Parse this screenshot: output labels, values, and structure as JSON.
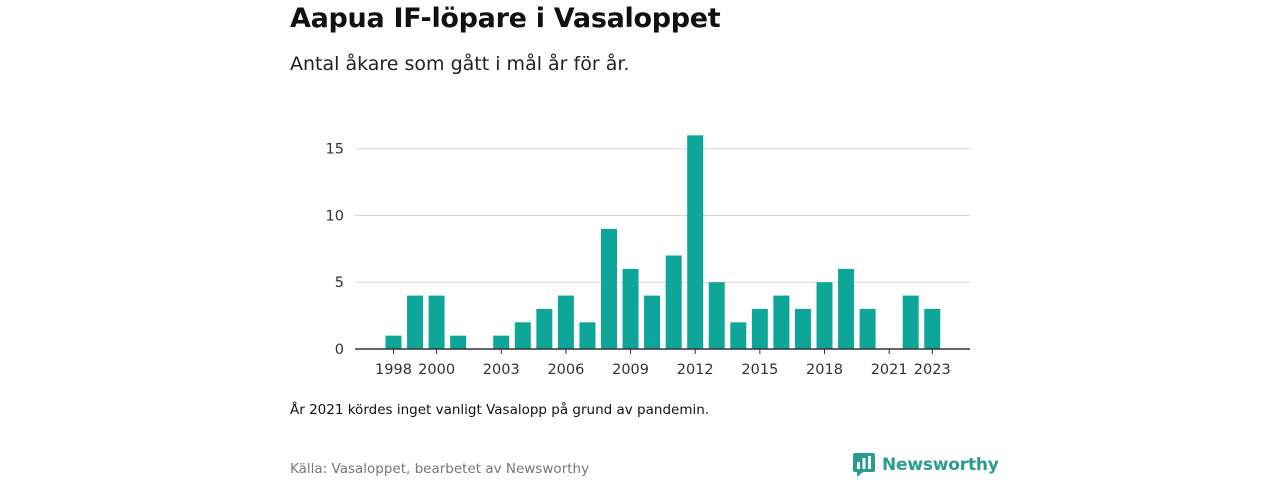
{
  "header": {
    "title": "Aapua IF-löpare i Vasaloppet",
    "subtitle": "Antal åkare som gått i mål år för år."
  },
  "footer": {
    "note": "År 2021 kördes inget vanligt Vasalopp på grund av pandemin.",
    "source": "Källa: Vasaloppet, bearbetet av Newsworthy",
    "brand": "Newsworthy",
    "brand_icon": "newsworthy-logo-icon"
  },
  "colors": {
    "bar": "#0fa69a",
    "grid": "#d9d9d9",
    "axis": "#333333",
    "brand": "#2a9d8f"
  },
  "chart_data": {
    "type": "bar",
    "title": "Aapua IF-löpare i Vasaloppet",
    "xlabel": "",
    "ylabel": "",
    "categories": [
      1998,
      1999,
      2000,
      2001,
      2002,
      2003,
      2004,
      2005,
      2006,
      2007,
      2008,
      2009,
      2010,
      2011,
      2012,
      2013,
      2014,
      2015,
      2016,
      2017,
      2018,
      2019,
      2020,
      2021,
      2022,
      2023
    ],
    "values": [
      1,
      4,
      4,
      1,
      0,
      1,
      2,
      3,
      4,
      2,
      9,
      6,
      4,
      7,
      16,
      5,
      2,
      3,
      4,
      3,
      5,
      6,
      3,
      0,
      4,
      3
    ],
    "ylim": [
      0,
      17
    ],
    "yticks": [
      0,
      5,
      10,
      15
    ],
    "xtick_labels": [
      "1998",
      "2000",
      "2003",
      "2006",
      "2009",
      "2012",
      "2015",
      "2018",
      "2021",
      "2023"
    ],
    "grid": true,
    "legend": "none"
  }
}
